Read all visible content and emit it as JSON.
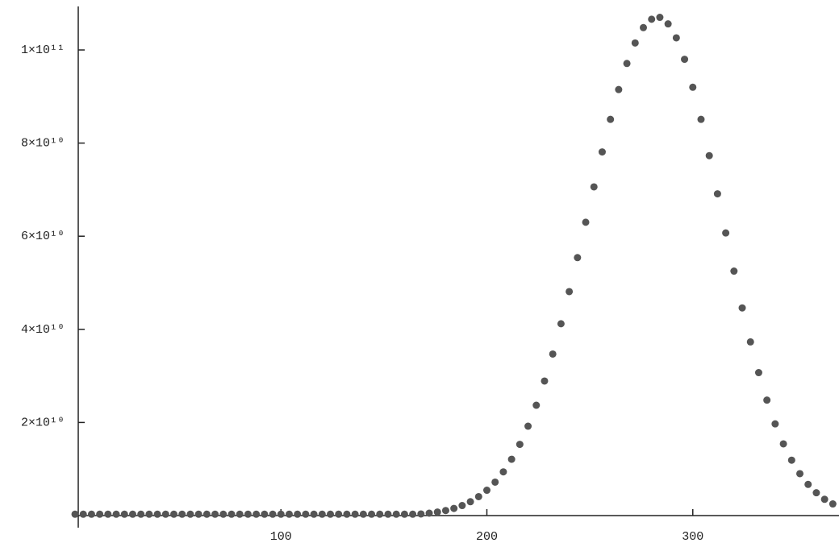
{
  "chart_data": {
    "type": "scatter",
    "series": [
      {
        "color": "#555555",
        "x": [
          0,
          4,
          8,
          12,
          16,
          20,
          24,
          28,
          32,
          36,
          40,
          44,
          48,
          52,
          56,
          60,
          64,
          68,
          72,
          76,
          80,
          84,
          88,
          92,
          96,
          100,
          104,
          108,
          112,
          116,
          120,
          124,
          128,
          132,
          136,
          140,
          144,
          148,
          152,
          156,
          160,
          164,
          168,
          172,
          176,
          180,
          184,
          188,
          192,
          196,
          200,
          204,
          208,
          212,
          216,
          220,
          224,
          228,
          232,
          236,
          240,
          244,
          248,
          252,
          256,
          260,
          264,
          268,
          272,
          276,
          280,
          284,
          288,
          292,
          296,
          300,
          304,
          308,
          312,
          316,
          320,
          324,
          328,
          332,
          336,
          340,
          344,
          348,
          352,
          356,
          360,
          364,
          368
        ],
        "values": [
          300000000.0,
          300000000.0,
          300000000.0,
          300000000.0,
          300000000.0,
          300000000.0,
          300000000.0,
          300000000.0,
          300000000.0,
          300000000.0,
          300000000.0,
          300000000.0,
          300000000.0,
          300000000.0,
          300000000.0,
          300000000.0,
          300000000.0,
          300000000.0,
          300000000.0,
          300000000.0,
          300000000.0,
          300000000.0,
          300000000.0,
          300000000.0,
          300000000.0,
          300000000.0,
          300000000.0,
          300000000.0,
          300000000.0,
          300000000.0,
          300000000.0,
          300000000.0,
          300000000.0,
          300000000.0,
          300000000.0,
          300000000.0,
          300000000.0,
          300000000.0,
          300000000.0,
          300000000.0,
          300000000.0,
          300000000.0,
          350000000.0,
          520000000.0,
          760000000.0,
          1090000000.0,
          1540000000.0,
          2160000000.0,
          2980000000.0,
          4070000000.0,
          5440000000.0,
          7190000000.0,
          9390000000.0,
          12100000000.0,
          15300000000.0,
          19200000000.0,
          23700000000.0,
          28900000000.0,
          34700000000.0,
          41200000000.0,
          48100000000.0,
          55400000000.0,
          63000000000.0,
          70600000000.0,
          78100000000.0,
          85100000000.0,
          91500000000.0,
          97100000000.0,
          101500000000.0,
          104800000000.0,
          106600000000.0,
          107000000000.0,
          105600000000.0,
          102600000000.0,
          98000000000.0,
          92000000000.0,
          85100000000.0,
          77300000000.0,
          69100000000.0,
          60700000000.0,
          52500000000.0,
          44600000000.0,
          37300000000.0,
          30700000000.0,
          24800000000.0,
          19700000000.0,
          15400000000.0,
          11900000000.0,
          9000000000.0,
          6700000000.0,
          4900000000.0,
          3500000000.0,
          2500000000.0
        ]
      }
    ],
    "xlim": [
      0,
      371
    ],
    "ylim": [
      0,
      109000000000
    ],
    "xticks": [
      100,
      200,
      300
    ],
    "yticks": [
      {
        "value": 20000000000,
        "label": "2×10¹⁰"
      },
      {
        "value": 40000000000,
        "label": "4×10¹⁰"
      },
      {
        "value": 60000000000,
        "label": "6×10¹⁰"
      },
      {
        "value": 80000000000,
        "label": "8×10¹⁰"
      },
      {
        "value": 100000000000,
        "label": "1×10¹¹"
      }
    ]
  }
}
